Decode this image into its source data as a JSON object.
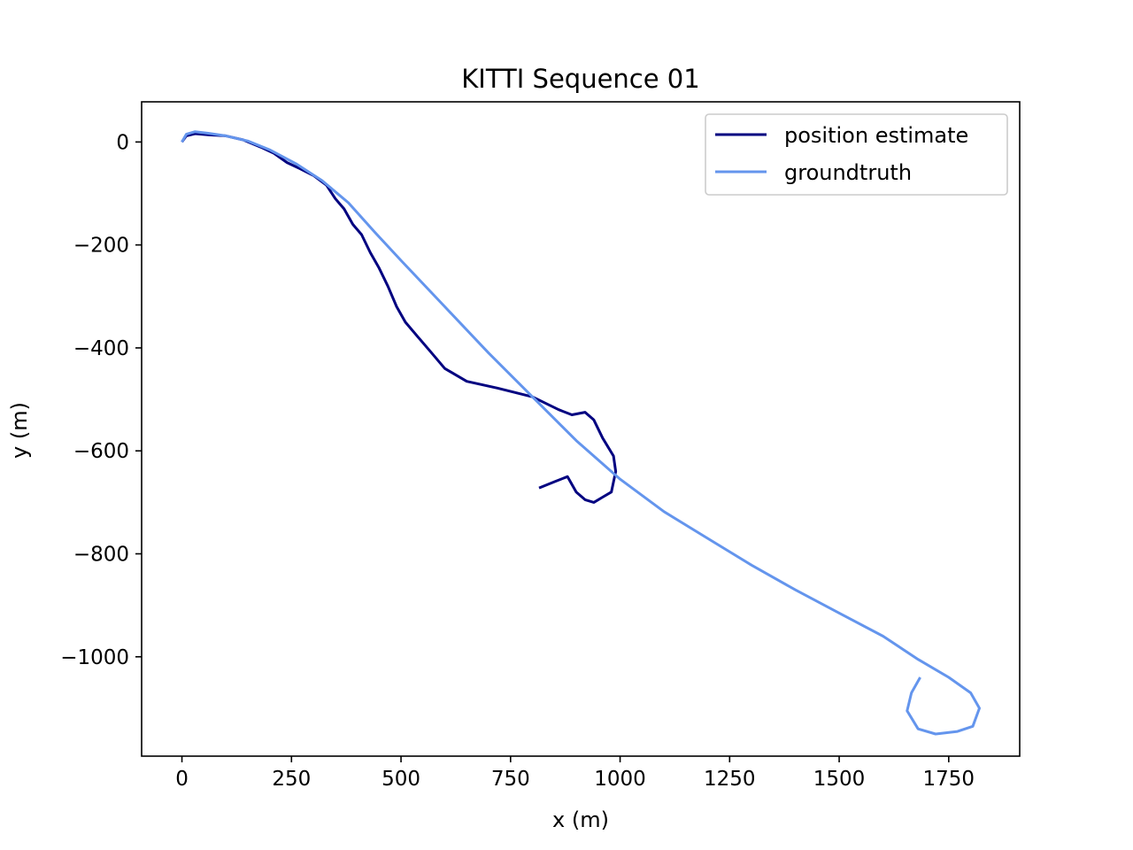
{
  "chart_data": {
    "type": "line",
    "title": "KITTI Sequence 01",
    "xlabel": "x (m)",
    "ylabel": "y (m)",
    "xlim": [
      -92,
      1912
    ],
    "ylim": [
      -1193,
      78
    ],
    "xticks": [
      0,
      250,
      500,
      750,
      1000,
      1250,
      1500,
      1750
    ],
    "xtick_labels": [
      "0",
      "250",
      "500",
      "750",
      "1000",
      "1250",
      "1500",
      "1750"
    ],
    "yticks": [
      0,
      -200,
      -400,
      -600,
      -800,
      -1000
    ],
    "ytick_labels": [
      "0",
      "−200",
      "−400",
      "−600",
      "−800",
      "−1000"
    ],
    "grid": false,
    "legend": "upper right",
    "series": [
      {
        "name": "position estimate",
        "color": "#000080",
        "points": [
          [
            0,
            0
          ],
          [
            10,
            12
          ],
          [
            30,
            16
          ],
          [
            60,
            14
          ],
          [
            100,
            12
          ],
          [
            140,
            4
          ],
          [
            180,
            -10
          ],
          [
            210,
            -22
          ],
          [
            240,
            -40
          ],
          [
            270,
            -52
          ],
          [
            300,
            -65
          ],
          [
            330,
            -84
          ],
          [
            350,
            -110
          ],
          [
            370,
            -130
          ],
          [
            390,
            -160
          ],
          [
            410,
            -180
          ],
          [
            430,
            -215
          ],
          [
            450,
            -245
          ],
          [
            470,
            -280
          ],
          [
            490,
            -320
          ],
          [
            510,
            -350
          ],
          [
            540,
            -380
          ],
          [
            570,
            -410
          ],
          [
            600,
            -440
          ],
          [
            650,
            -465
          ],
          [
            720,
            -478
          ],
          [
            800,
            -495
          ],
          [
            860,
            -520
          ],
          [
            890,
            -530
          ],
          [
            920,
            -525
          ],
          [
            940,
            -540
          ],
          [
            960,
            -575
          ],
          [
            985,
            -610
          ],
          [
            990,
            -640
          ],
          [
            980,
            -680
          ],
          [
            960,
            -690
          ],
          [
            940,
            -700
          ],
          [
            920,
            -695
          ],
          [
            900,
            -680
          ],
          [
            880,
            -650
          ],
          [
            850,
            -660
          ],
          [
            815,
            -672
          ]
        ]
      },
      {
        "name": "groundtruth",
        "color": "#6495ED",
        "points": [
          [
            0,
            0
          ],
          [
            10,
            15
          ],
          [
            30,
            20
          ],
          [
            60,
            17
          ],
          [
            100,
            12
          ],
          [
            150,
            2
          ],
          [
            200,
            -15
          ],
          [
            260,
            -42
          ],
          [
            320,
            -75
          ],
          [
            380,
            -118
          ],
          [
            440,
            -175
          ],
          [
            500,
            -230
          ],
          [
            600,
            -320
          ],
          [
            700,
            -410
          ],
          [
            800,
            -495
          ],
          [
            900,
            -580
          ],
          [
            1000,
            -655
          ],
          [
            1100,
            -718
          ],
          [
            1200,
            -770
          ],
          [
            1300,
            -822
          ],
          [
            1400,
            -870
          ],
          [
            1500,
            -915
          ],
          [
            1600,
            -960
          ],
          [
            1680,
            -1005
          ],
          [
            1750,
            -1040
          ],
          [
            1800,
            -1070
          ],
          [
            1820,
            -1100
          ],
          [
            1805,
            -1135
          ],
          [
            1770,
            -1145
          ],
          [
            1720,
            -1150
          ],
          [
            1680,
            -1140
          ],
          [
            1655,
            -1105
          ],
          [
            1665,
            -1070
          ],
          [
            1685,
            -1040
          ]
        ]
      }
    ]
  }
}
